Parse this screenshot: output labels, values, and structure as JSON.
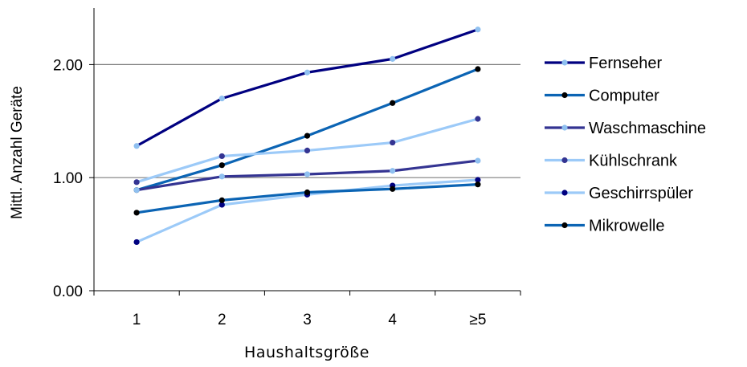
{
  "chart_data": {
    "type": "line",
    "categories": [
      "1",
      "2",
      "3",
      "4",
      "≥5"
    ],
    "xlabel": "Haushaltsgröße",
    "ylabel": "Mittl. Anzahl Geräte",
    "ylim": [
      0,
      2.5
    ],
    "yticks": [
      "0.00",
      "1.00",
      "2.00"
    ],
    "ytick_values": [
      0,
      1,
      2
    ],
    "grid": "horizontal",
    "legend_position": "right",
    "series": [
      {
        "name": "Fernseher",
        "values": [
          1.28,
          1.7,
          1.93,
          2.05,
          2.31
        ],
        "color": "#000080",
        "marker_color": "#8fc0f0"
      },
      {
        "name": "Computer",
        "values": [
          0.89,
          1.11,
          1.37,
          1.66,
          1.96
        ],
        "color": "#0b64b4",
        "marker_color": "#000000"
      },
      {
        "name": "Waschmaschine",
        "values": [
          0.89,
          1.01,
          1.03,
          1.06,
          1.15
        ],
        "color": "#343492",
        "marker_color": "#8fc0f0"
      },
      {
        "name": "Kühlschrank",
        "values": [
          0.96,
          1.19,
          1.24,
          1.31,
          1.52
        ],
        "color": "#9ccaf8",
        "marker_color": "#343492"
      },
      {
        "name": "Geschirrspüler",
        "values": [
          0.43,
          0.76,
          0.85,
          0.93,
          0.98
        ],
        "color": "#9ccaf8",
        "marker_color": "#000080"
      },
      {
        "name": "Mikrowelle",
        "values": [
          0.69,
          0.8,
          0.87,
          0.9,
          0.94
        ],
        "color": "#0b64b4",
        "marker_color": "#000000"
      }
    ]
  }
}
